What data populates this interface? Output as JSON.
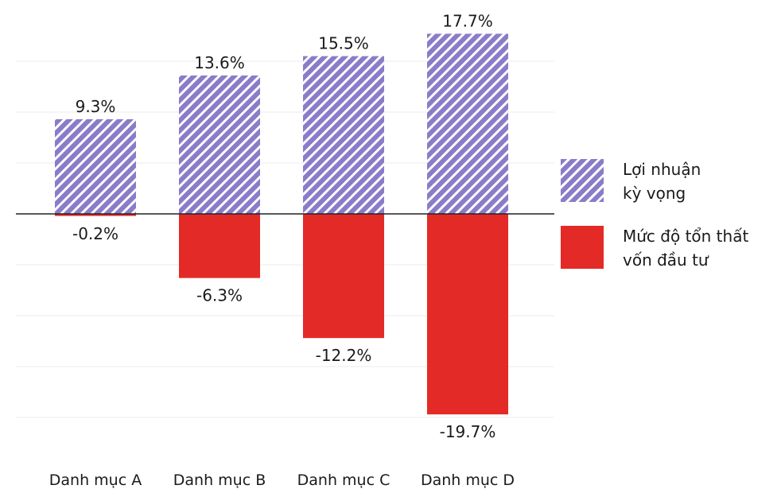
{
  "chart_data": {
    "type": "bar",
    "categories": [
      "Danh mục A",
      "Danh mục B",
      "Danh mục C",
      "Danh mục D"
    ],
    "series": [
      {
        "name": "Lợi nhuận kỳ vọng",
        "values": [
          9.3,
          13.6,
          15.5,
          17.7
        ],
        "labels": [
          "9.3%",
          "13.6%",
          "15.5%",
          "17.7%"
        ],
        "color": "#8a7cc9",
        "pattern": "diagonal-hatch"
      },
      {
        "name": "Mức độ tổn thất vốn đầu tư",
        "values": [
          -0.2,
          -6.3,
          -12.2,
          -19.7
        ],
        "labels": [
          "-0.2%",
          "-6.3%",
          "-12.2%",
          "-19.7%"
        ],
        "color": "#e42a26",
        "pattern": "solid"
      }
    ],
    "ylim": [
      -22,
      20
    ],
    "grid": true,
    "legend_position": "right"
  },
  "legend": {
    "items": [
      {
        "line1": "Lợi nhuận",
        "line2": "kỳ vọng"
      },
      {
        "line1": "Mức độ tổn thất",
        "line2": "vốn đầu tư"
      }
    ]
  }
}
